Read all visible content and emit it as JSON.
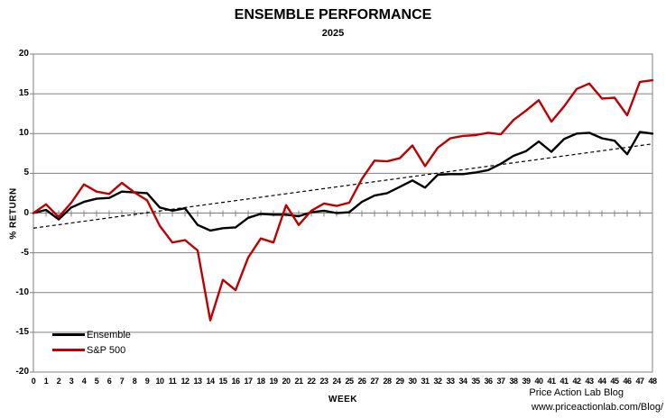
{
  "title": "ENSEMBLE PERFORMANCE",
  "subtitle": "2025",
  "credit": {
    "line1": "Price Action Lab Blog",
    "line2": "www.priceactionlab.com/Blog/"
  },
  "chart_data": {
    "type": "line",
    "title": "ENSEMBLE PERFORMANCE",
    "subtitle": "2025",
    "xlabel": "WEEK",
    "ylabel": "% RETURN",
    "ylim": [
      -20,
      20
    ],
    "yticks": [
      20,
      15,
      10,
      5,
      0,
      -5,
      -10,
      -15,
      -20
    ],
    "grid": "horizontal",
    "legend_position": "inside-bottom-left",
    "axis_color": "#808080",
    "categories": [
      "0",
      "1",
      "2",
      "3",
      "4",
      "5",
      "6",
      "7",
      "8",
      "9",
      "10",
      "11",
      "12",
      "13",
      "14",
      "15",
      "16",
      "17",
      "18",
      "19",
      "20",
      "21",
      "22",
      "23",
      "24",
      "25",
      "26",
      "27",
      "28",
      "29",
      "30",
      "31",
      "32",
      "33",
      "34",
      "35",
      "36",
      "37",
      "38",
      "39",
      "40",
      "41",
      "41",
      "42",
      "43",
      "44",
      "45",
      "46",
      "47",
      "48"
    ],
    "series": [
      {
        "name": "Ensemble",
        "color": "#000000",
        "values": [
          0.0,
          0.4,
          -0.8,
          0.7,
          1.4,
          1.8,
          1.9,
          2.7,
          2.6,
          2.5,
          0.7,
          0.3,
          0.6,
          -1.5,
          -2.2,
          -1.9,
          -1.8,
          -0.6,
          -0.1,
          -0.2,
          -0.2,
          -0.4,
          0.1,
          0.3,
          0.0,
          0.1,
          1.4,
          2.2,
          2.5,
          3.3,
          4.1,
          3.2,
          4.8,
          4.9,
          4.9,
          5.1,
          5.4,
          6.2,
          7.2,
          7.8,
          9.0,
          7.7,
          9.3,
          10.0,
          10.1,
          9.4,
          9.1,
          7.4,
          10.2,
          10.0
        ]
      },
      {
        "name": "S&P 500",
        "color": "#C00000",
        "values": [
          0.0,
          1.1,
          -0.5,
          1.3,
          3.6,
          2.7,
          2.4,
          3.8,
          2.6,
          1.6,
          -1.6,
          -3.7,
          -3.4,
          -4.7,
          -13.5,
          -8.4,
          -9.7,
          -5.6,
          -3.2,
          -3.7,
          1.0,
          -1.5,
          0.3,
          1.2,
          0.9,
          1.3,
          4.3,
          6.6,
          6.5,
          6.9,
          8.5,
          5.9,
          8.2,
          9.4,
          9.7,
          9.8,
          10.1,
          9.9,
          11.7,
          12.9,
          14.2,
          11.5,
          13.4,
          15.6,
          16.3,
          14.4,
          14.5,
          12.3,
          16.5,
          16.7
        ]
      }
    ],
    "trendline": {
      "style": "dashed",
      "color": "#000000",
      "start": -1.9,
      "end": 8.7
    }
  }
}
